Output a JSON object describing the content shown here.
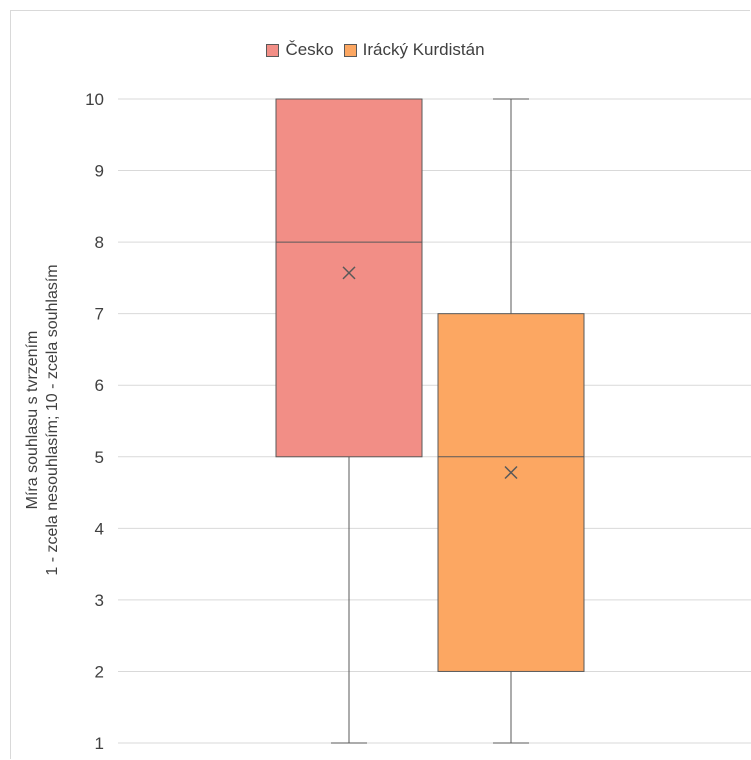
{
  "chart_data": {
    "type": "boxplot",
    "legend_position": "top",
    "grid": true,
    "ylabel_line1": "Míra souhlasu s tvrzením",
    "ylabel_line2": "1 - zcela nesouhlasím; 10 - zcela souhlasím",
    "ylim": [
      1,
      10
    ],
    "yticks": [
      "1",
      "2",
      "3",
      "4",
      "5",
      "6",
      "7",
      "8",
      "9",
      "10"
    ],
    "series": [
      {
        "name": "Česko",
        "color": "#f28e86",
        "min": 1,
        "q1": 5,
        "median": 8,
        "q3": 10,
        "max": 10,
        "mean": 7.57
      },
      {
        "name": "Irácký Kurdistán",
        "color": "#fca762",
        "min": 1,
        "q1": 2,
        "median": 5,
        "q3": 7,
        "max": 10,
        "mean": 4.78
      }
    ]
  }
}
